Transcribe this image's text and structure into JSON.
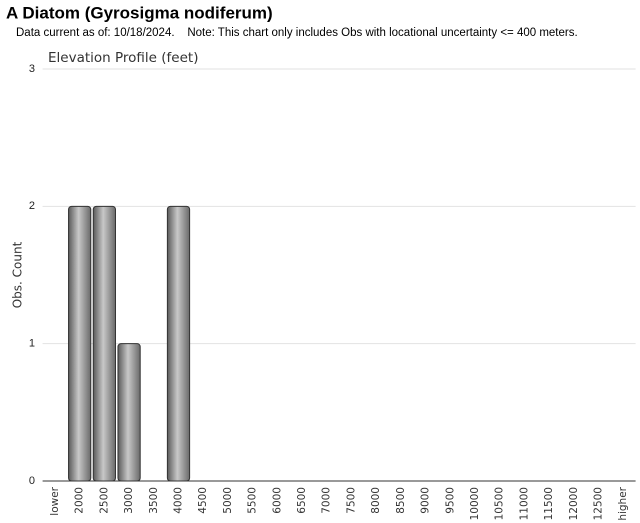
{
  "chart_data": {
    "type": "bar",
    "title": "A Diatom   (Gyrosigma nodiferum)",
    "subtitle": "Data current as of: 10/18/2024.    Note: This chart only includes Obs with locational uncertainty <= 400 meters.",
    "chart_title": "Elevation Profile (feet)",
    "y_label": "Obs. Count",
    "categories": [
      "lower",
      "2000",
      "2500",
      "3000",
      "3500",
      "4000",
      "4500",
      "5000",
      "5500",
      "6000",
      "6500",
      "7000",
      "7500",
      "8000",
      "8500",
      "9000",
      "9500",
      "10000",
      "10500",
      "11000",
      "11500",
      "12000",
      "12500",
      "higher"
    ],
    "values": [
      0,
      2,
      2,
      1,
      0,
      2,
      0,
      0,
      0,
      0,
      0,
      0,
      0,
      0,
      0,
      0,
      0,
      0,
      0,
      0,
      0,
      0,
      0,
      0
    ],
    "color": "#c8c8c8",
    "ylim": [
      0,
      3
    ],
    "yticks": [
      0,
      1,
      2,
      3
    ],
    "grid": true
  }
}
